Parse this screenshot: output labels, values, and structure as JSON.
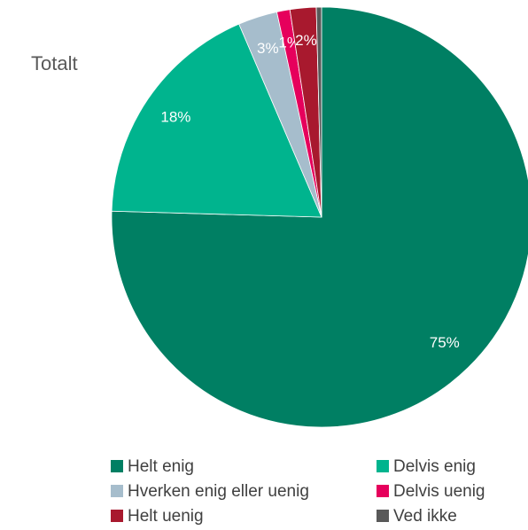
{
  "chart_data": {
    "type": "pie",
    "title": "Totalt",
    "categories": [
      "Helt enig",
      "Delvis enig",
      "Hverken enig eller uenig",
      "Delvis uenig",
      "Helt uenig",
      "Ved ikke"
    ],
    "values": [
      75,
      18,
      3,
      1,
      2,
      0.4
    ],
    "value_labels": [
      "75%",
      "18%",
      "3%",
      "1%",
      "2%",
      null
    ],
    "colors": [
      "#007f63",
      "#00b48e",
      "#a6bdcc",
      "#e6005c",
      "#a8192e",
      "#595959"
    ],
    "start_angle": 0,
    "direction": "clockwise"
  }
}
